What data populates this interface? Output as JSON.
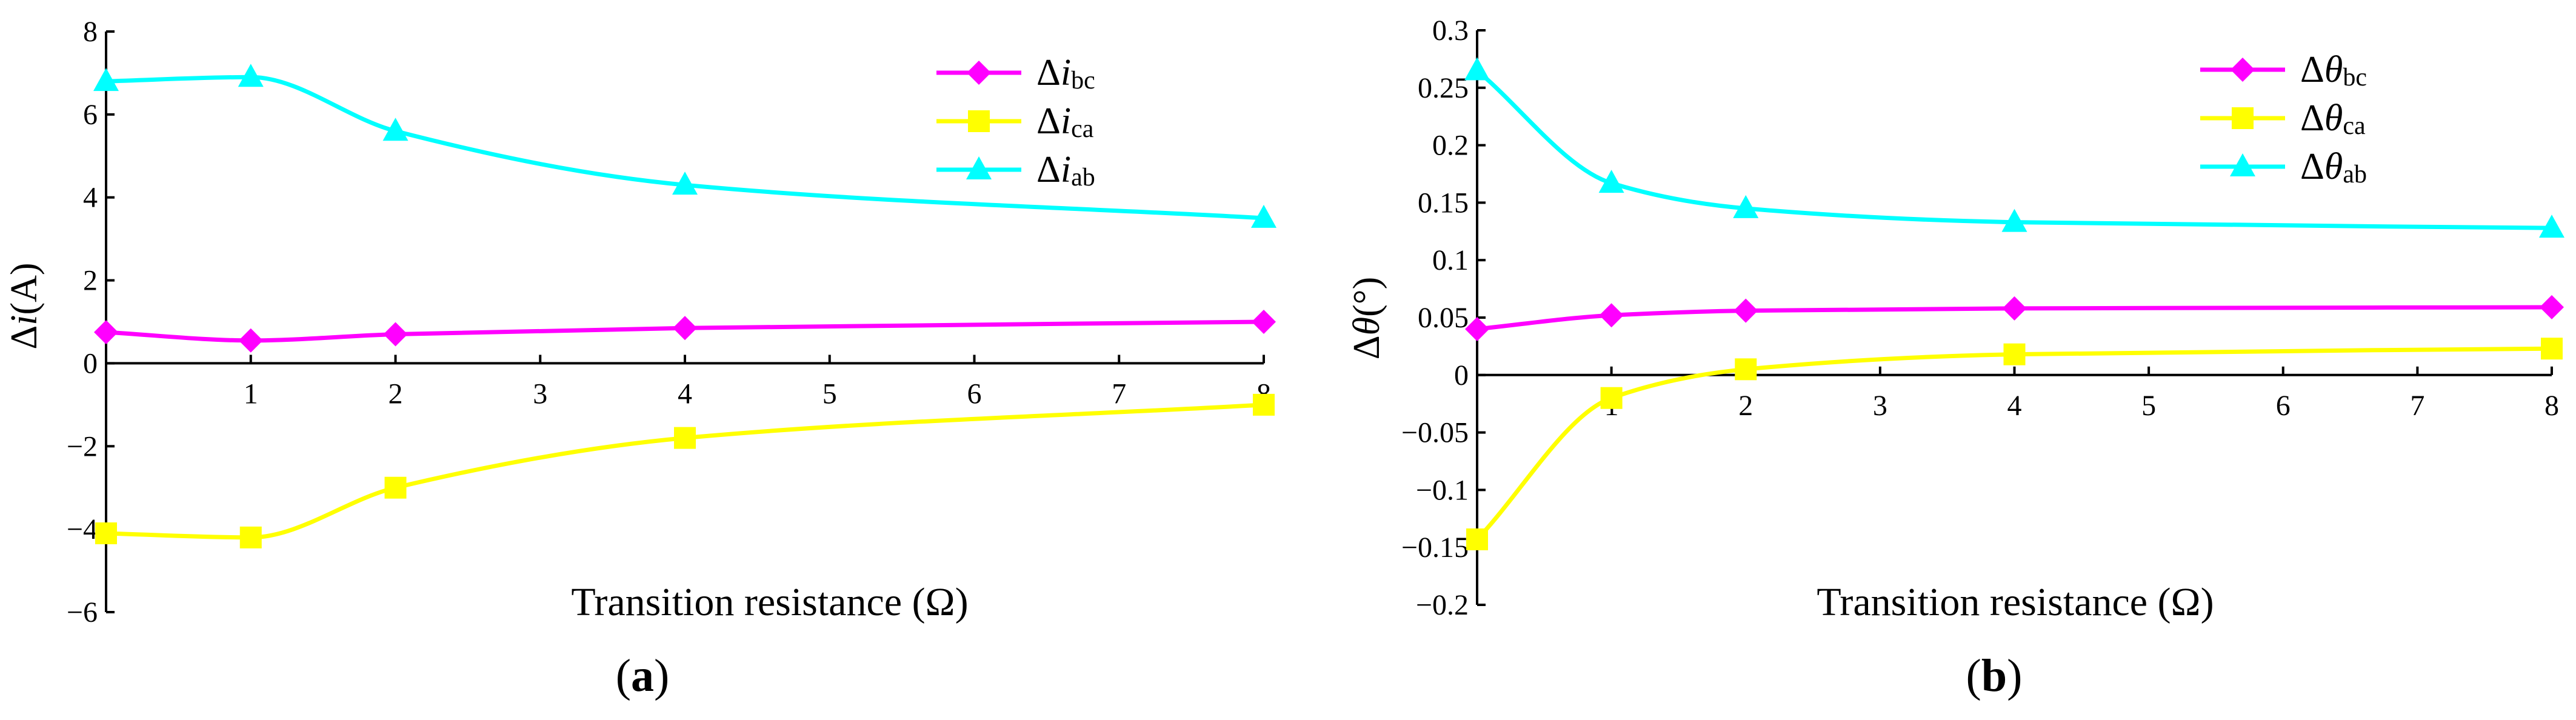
{
  "chart_data": [
    {
      "type": "line",
      "panel_label": {
        "open": "(",
        "letter": "a",
        "close": ")"
      },
      "xlabel": "Transition resistance (Ω)",
      "ylabel": "Δi(A)",
      "ylabel_parts": {
        "delta": "Δ",
        "var": "i",
        "unit": "(A)"
      },
      "xlim": [
        0,
        8
      ],
      "ylim": [
        -6,
        8
      ],
      "x_ticks": [
        1,
        2,
        3,
        4,
        5,
        6,
        7,
        8
      ],
      "y_ticks": [
        -6,
        -4,
        -2,
        0,
        2,
        4,
        6,
        8
      ],
      "y_tick_labels": [
        "−6",
        "−4",
        "−2",
        "0",
        "2",
        "4",
        "6",
        "8"
      ],
      "legend_position": "top-right",
      "x": [
        0,
        1,
        2,
        4,
        8
      ],
      "series": [
        {
          "name": "Δibc",
          "delta": "Δ",
          "var": "i",
          "sub": "bc",
          "color": "#ff00ff",
          "marker": "diamond",
          "values": [
            0.75,
            0.55,
            0.7,
            0.85,
            1.0
          ]
        },
        {
          "name": "Δica",
          "delta": "Δ",
          "var": "i",
          "sub": "ca",
          "color": "#ffff00",
          "marker": "square",
          "values": [
            -4.1,
            -4.2,
            -3.0,
            -1.8,
            -1.0
          ]
        },
        {
          "name": "Δiab",
          "delta": "Δ",
          "var": "i",
          "sub": "ab",
          "color": "#00ffff",
          "marker": "triangle",
          "values": [
            6.8,
            6.9,
            5.6,
            4.3,
            3.5
          ]
        }
      ]
    },
    {
      "type": "line",
      "panel_label": {
        "open": "(",
        "letter": "b",
        "close": ")"
      },
      "xlabel": "Transition resistance (Ω)",
      "ylabel": "Δθ(°)",
      "ylabel_parts": {
        "delta": "Δ",
        "var": "θ",
        "unit": "(°)"
      },
      "xlim": [
        0,
        8
      ],
      "ylim": [
        -0.2,
        0.3
      ],
      "x_ticks": [
        1,
        2,
        3,
        4,
        5,
        6,
        7,
        8
      ],
      "y_ticks": [
        -0.2,
        -0.15,
        -0.1,
        -0.05,
        0,
        0.05,
        0.1,
        0.15,
        0.2,
        0.25,
        0.3
      ],
      "y_tick_labels": [
        "−0.2",
        "−0.15",
        "−0.1",
        "−0.05",
        "0",
        "0.05",
        "0.1",
        "0.15",
        "0.2",
        "0.25",
        "0.3"
      ],
      "legend_position": "top-right",
      "x": [
        0,
        1,
        2,
        4,
        8
      ],
      "series": [
        {
          "name": "Δθbc",
          "delta": "Δ",
          "var": "θ",
          "sub": "bc",
          "color": "#ff00ff",
          "marker": "diamond",
          "values": [
            0.04,
            0.052,
            0.056,
            0.058,
            0.059
          ]
        },
        {
          "name": "Δθca",
          "delta": "Δ",
          "var": "θ",
          "sub": "ca",
          "color": "#ffff00",
          "marker": "square",
          "values": [
            -0.143,
            -0.02,
            0.005,
            0.018,
            0.023
          ]
        },
        {
          "name": "Δθab",
          "delta": "Δ",
          "var": "θ",
          "sub": "ab",
          "color": "#00ffff",
          "marker": "triangle",
          "values": [
            0.265,
            0.167,
            0.145,
            0.133,
            0.128
          ]
        }
      ]
    }
  ]
}
